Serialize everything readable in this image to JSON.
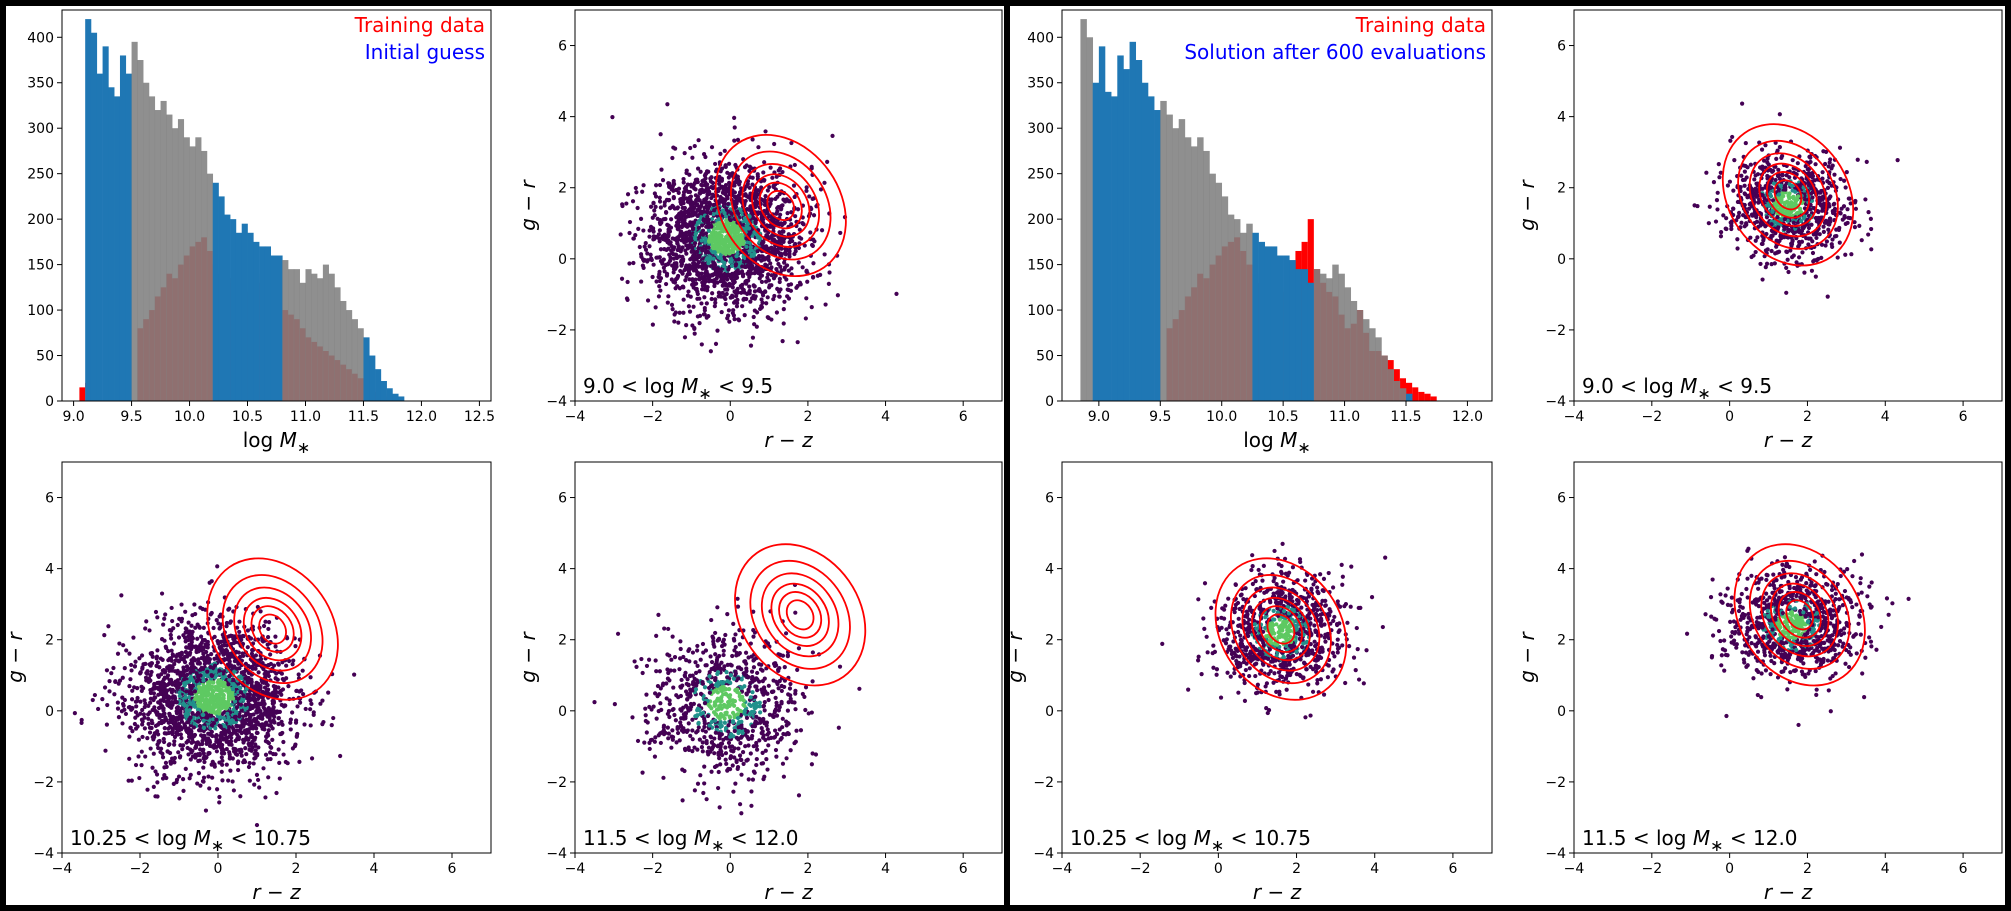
{
  "colors": {
    "training": "#ff0000",
    "initial": "#0000ff",
    "hist_blue": "#1f77b4",
    "hist_gray": "#808080",
    "hist_brown": "#9b6a66",
    "scatter_dark": "#440154",
    "scatter_teal": "#21918c",
    "scatter_green": "#5ec962",
    "contour": "#ff0000"
  },
  "panels": [
    {
      "id": "left",
      "hist": {
        "xlabel": "log M*",
        "xticks": [
          "9.0",
          "9.5",
          "10.0",
          "10.5",
          "11.0",
          "11.5",
          "12.0",
          "12.5"
        ],
        "yticks": [
          "0",
          "50",
          "100",
          "150",
          "200",
          "250",
          "300",
          "350",
          "400"
        ],
        "legend": [
          "Training data",
          "Initial guess"
        ]
      },
      "scatter_panels": [
        {
          "annotation": "9.0 < log M* < 9.5",
          "xlabel": "r − z",
          "ylabel": "g − r"
        },
        {
          "annotation": "10.25 < log M* < 10.75",
          "xlabel": "r − z",
          "ylabel": "g − r"
        },
        {
          "annotation": "11.5 < log M* < 12.0",
          "xlabel": "r − z",
          "ylabel": "g − r"
        }
      ]
    },
    {
      "id": "right",
      "hist": {
        "xlabel": "log M*",
        "xticks": [
          "9.0",
          "9.5",
          "10.0",
          "10.5",
          "11.0",
          "11.5",
          "12.0"
        ],
        "yticks": [
          "0",
          "50",
          "100",
          "150",
          "200",
          "250",
          "300",
          "350",
          "400"
        ],
        "legend": [
          "Training data",
          "Solution after 600 evaluations"
        ]
      },
      "scatter_panels": [
        {
          "annotation": "9.0 < log M* < 9.5",
          "xlabel": "r − z",
          "ylabel": "g − r"
        },
        {
          "annotation": "10.25 < log M* < 10.75",
          "xlabel": "r − z",
          "ylabel": "g − r"
        },
        {
          "annotation": "11.5 < log M* < 12.0",
          "xlabel": "r − z",
          "ylabel": "g − r"
        }
      ]
    }
  ],
  "chart_data": [
    {
      "type": "bar",
      "title": "",
      "xlabel": "log M*",
      "ylabel": "",
      "xlim": [
        8.9,
        12.6
      ],
      "ylim": [
        0,
        430
      ],
      "series": [
        {
          "name": "Training data",
          "bin_start": 9.05,
          "bin_width": 0.05,
          "values": [
            15,
            20,
            0,
            0,
            0,
            0,
            0,
            0,
            0,
            0,
            80,
            90,
            100,
            115,
            125,
            140,
            135,
            150,
            160,
            170,
            175,
            180,
            165,
            150,
            140,
            130,
            135,
            130,
            125,
            120,
            140,
            130,
            120,
            110,
            100,
            100,
            95,
            90,
            80,
            70,
            65,
            60,
            55,
            50,
            45,
            40,
            35,
            30,
            25,
            20,
            15,
            10,
            8,
            5
          ]
        },
        {
          "name": "Initial guess",
          "bin_start": 9.1,
          "bin_width": 0.05,
          "values": [
            420,
            405,
            360,
            390,
            345,
            335,
            380,
            360,
            395,
            375,
            350,
            335,
            320,
            330,
            315,
            300,
            310,
            290,
            280,
            290,
            275,
            250,
            240,
            225,
            205,
            200,
            185,
            195,
            185,
            175,
            170,
            170,
            160,
            160,
            155,
            145,
            145,
            130,
            145,
            140,
            135,
            150,
            140,
            125,
            110,
            100,
            90,
            80,
            70,
            50,
            35,
            22,
            14,
            8,
            5
          ]
        }
      ]
    },
    {
      "type": "scatter",
      "annotation": "9.0 < log M* < 9.5",
      "xlabel": "r − z",
      "ylabel": "g − r",
      "xlim": [
        -4,
        7
      ],
      "ylim": [
        -4,
        7
      ],
      "scatter_center": [
        -0.1,
        0.6
      ],
      "scatter_spread": [
        0.95,
        1.0
      ],
      "contour_center": [
        1.3,
        1.5
      ]
    },
    {
      "type": "scatter",
      "annotation": "10.25 < log M* < 10.75",
      "xlabel": "r − z",
      "ylabel": "g − r",
      "xlim": [
        -4,
        7
      ],
      "ylim": [
        -4,
        7
      ],
      "scatter_center": [
        -0.1,
        0.4
      ],
      "scatter_spread": [
        1.0,
        1.0
      ],
      "contour_center": [
        1.4,
        2.3
      ]
    },
    {
      "type": "scatter",
      "annotation": "11.5 < log M* < 12.0",
      "xlabel": "r − z",
      "ylabel": "g − r",
      "xlim": [
        -4,
        7
      ],
      "ylim": [
        -4,
        7
      ],
      "scatter_center": [
        -0.1,
        0.2
      ],
      "scatter_spread": [
        0.95,
        1.0
      ],
      "contour_center": [
        1.8,
        2.7
      ]
    },
    {
      "type": "bar",
      "title": "",
      "xlabel": "log M*",
      "ylabel": "",
      "xlim": [
        8.7,
        12.2
      ],
      "ylim": [
        0,
        430
      ],
      "series": [
        {
          "name": "Training data",
          "bin_start": 9.05,
          "bin_width": 0.05,
          "values": [
            0,
            0,
            0,
            0,
            0,
            0,
            0,
            0,
            0,
            0,
            80,
            90,
            100,
            115,
            125,
            140,
            135,
            150,
            160,
            170,
            175,
            180,
            165,
            150,
            140,
            130,
            135,
            130,
            125,
            120,
            140,
            165,
            175,
            200,
            145,
            130,
            120,
            115,
            95,
            80,
            85,
            100,
            75,
            55,
            55,
            50,
            45,
            35,
            25,
            20,
            15,
            10,
            8,
            5
          ]
        },
        {
          "name": "Solution after 600 evaluations",
          "bin_start": 8.85,
          "bin_width": 0.05,
          "values": [
            420,
            400,
            350,
            390,
            340,
            335,
            380,
            365,
            395,
            375,
            350,
            335,
            320,
            330,
            315,
            300,
            310,
            290,
            280,
            290,
            275,
            250,
            240,
            225,
            205,
            200,
            185,
            195,
            185,
            175,
            170,
            170,
            160,
            160,
            155,
            145,
            145,
            130,
            145,
            140,
            135,
            150,
            140,
            125,
            110,
            100,
            90,
            80,
            70,
            50,
            35,
            22,
            14,
            8
          ]
        }
      ]
    },
    {
      "type": "scatter",
      "annotation": "9.0 < log M* < 9.5",
      "xlabel": "r − z",
      "ylabel": "g − r",
      "xlim": [
        -4,
        7
      ],
      "ylim": [
        -4,
        7
      ],
      "scatter_center": [
        1.5,
        1.5
      ],
      "scatter_spread": [
        0.8,
        0.75
      ],
      "contour_center": [
        1.5,
        1.8
      ]
    },
    {
      "type": "scatter",
      "annotation": "10.25 < log M* < 10.75",
      "xlabel": "r − z",
      "ylabel": "g − r",
      "xlim": [
        -4,
        7
      ],
      "ylim": [
        -4,
        7
      ],
      "scatter_center": [
        1.6,
        2.2
      ],
      "scatter_spread": [
        0.8,
        0.8
      ],
      "contour_center": [
        1.6,
        2.3
      ]
    },
    {
      "type": "scatter",
      "annotation": "11.5 < log M* < 12.0",
      "xlabel": "r − z",
      "ylabel": "g − r",
      "xlim": [
        -4,
        7
      ],
      "ylim": [
        -4,
        7
      ],
      "scatter_center": [
        1.6,
        2.4
      ],
      "scatter_spread": [
        0.85,
        0.75
      ],
      "contour_center": [
        1.8,
        2.7
      ]
    }
  ]
}
